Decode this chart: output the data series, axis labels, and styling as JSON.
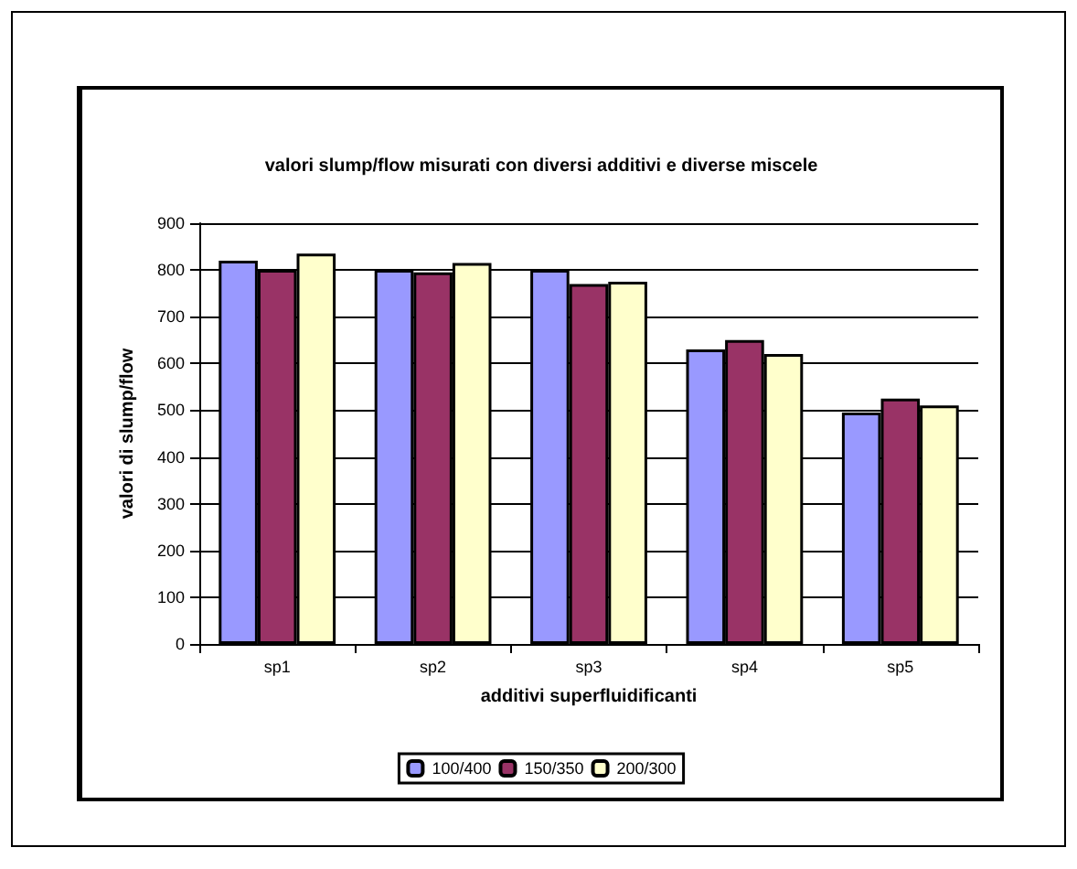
{
  "chart_data": {
    "type": "bar",
    "title": "valori slump/flow misurati con diversi additivi e diverse miscele",
    "xlabel": "additivi superfluidificanti",
    "ylabel": "valori di slump/flow",
    "categories": [
      "sp1",
      "sp2",
      "sp3",
      "sp4",
      "sp5"
    ],
    "series": [
      {
        "name": "100/400",
        "color": "#9999ff",
        "values": [
          820,
          800,
          800,
          630,
          495
        ]
      },
      {
        "name": "150/350",
        "color": "#993366",
        "values": [
          800,
          795,
          770,
          650,
          525
        ]
      },
      {
        "name": "200/300",
        "color": "#ffffcc",
        "values": [
          835,
          815,
          775,
          620,
          510
        ]
      }
    ],
    "ylim": [
      0,
      900
    ],
    "yticks": [
      0,
      100,
      200,
      300,
      400,
      500,
      600,
      700,
      800,
      900
    ],
    "grid": "y",
    "legend": "bottom"
  }
}
